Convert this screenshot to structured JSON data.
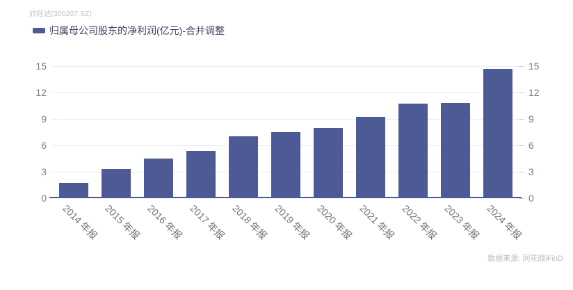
{
  "header": {
    "title": "欣旺达(300207.SZ)"
  },
  "legend": {
    "label": "归属母公司股东的净利润(亿元)-合并调整"
  },
  "footer": {
    "source_label": "数据来源: 同花顺iFinD"
  },
  "colors": {
    "background": "#ffffff",
    "bar": "#4d5a96",
    "gridline": "#e8ecf8",
    "axis_line": "#4d5a96",
    "tick": "#c7ccda",
    "y_label": "#7a7d85",
    "x_label": "#70727b",
    "title": "#c3c5cc",
    "legend_text": "#3e4266",
    "source_text": "#b8bbc5"
  },
  "chart_data": {
    "type": "bar",
    "title": "欣旺达(300207.SZ)",
    "categories": [
      "2014 年报",
      "2015 年报",
      "2016 年报",
      "2017 年报",
      "2018 年报",
      "2019 年报",
      "2020 年报",
      "2021 年报",
      "2022 年报",
      "2023 年报",
      "2024 年报"
    ],
    "series": [
      {
        "name": "归属母公司股东的净利润(亿元)-合并调整",
        "values": [
          1.7,
          3.3,
          4.5,
          5.4,
          7.0,
          7.5,
          8.0,
          9.2,
          10.7,
          10.8,
          14.7
        ]
      }
    ],
    "xlabel": "",
    "ylabel": "",
    "ylim": [
      0,
      15
    ],
    "yticks": [
      0,
      3,
      6,
      9,
      12,
      15
    ],
    "grid": true,
    "legend_position": "top-left",
    "x_label_rotation_deg": 45,
    "dual_y_axis": true
  }
}
